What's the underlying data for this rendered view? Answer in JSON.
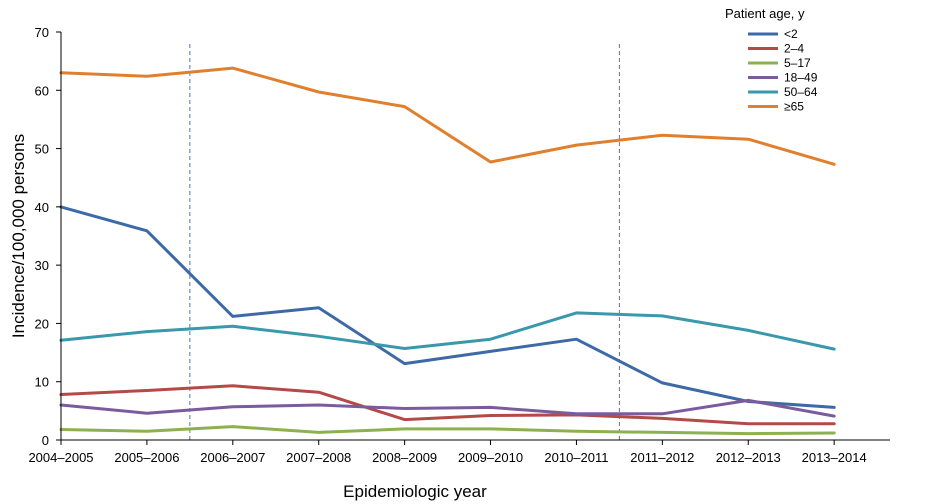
{
  "chart_data": {
    "type": "line",
    "title": "",
    "xlabel": "Epidemiologic year",
    "ylabel": "Incidence/100,000 persons",
    "ylim": [
      0,
      70
    ],
    "yticks": [
      "0",
      "10",
      "20",
      "30",
      "40",
      "50",
      "60",
      "70"
    ],
    "categories": [
      "2004–2005",
      "2005–2006",
      "2006–2007",
      "2007–2008",
      "2008–2009",
      "2009–2010",
      "2010–2011",
      "2011–2012",
      "2012–2013",
      "2013–2014"
    ],
    "legend_title": "Patient age, y",
    "legend_position": "top-right",
    "grid": false,
    "reference_lines": [
      {
        "position_between": [
          "2005–2006",
          "2006–2007"
        ],
        "style": "dashed",
        "color": "#4a78b8"
      },
      {
        "position_between": [
          "2010–2011",
          "2011–2012"
        ],
        "style": "dashed",
        "color": "#4a78b8"
      }
    ],
    "series": [
      {
        "name": "<2",
        "color": "#3d6aa6",
        "values": [
          40.0,
          35.9,
          21.2,
          22.7,
          13.1,
          15.2,
          17.3,
          9.8,
          6.6,
          5.6
        ]
      },
      {
        "name": "2–4",
        "color": "#b34a47",
        "values": [
          7.8,
          8.5,
          9.3,
          8.2,
          3.5,
          4.2,
          4.3,
          3.7,
          2.8,
          2.8
        ]
      },
      {
        "name": "5–17",
        "color": "#8db052",
        "values": [
          1.8,
          1.5,
          2.3,
          1.3,
          1.9,
          1.9,
          1.5,
          1.3,
          1.1,
          1.2
        ]
      },
      {
        "name": "18–49",
        "color": "#7b5b9d",
        "values": [
          6.0,
          4.6,
          5.7,
          6.0,
          5.4,
          5.6,
          4.5,
          4.5,
          6.8,
          4.1
        ]
      },
      {
        "name": "50–64",
        "color": "#3a98ad",
        "values": [
          17.1,
          18.6,
          19.5,
          17.8,
          15.7,
          17.3,
          21.8,
          21.3,
          18.8,
          15.6
        ]
      },
      {
        "name": "≥65",
        "color": "#e07f2e",
        "values": [
          63.0,
          62.4,
          63.8,
          59.7,
          57.2,
          47.7,
          50.6,
          52.3,
          51.6,
          47.3
        ]
      }
    ]
  }
}
